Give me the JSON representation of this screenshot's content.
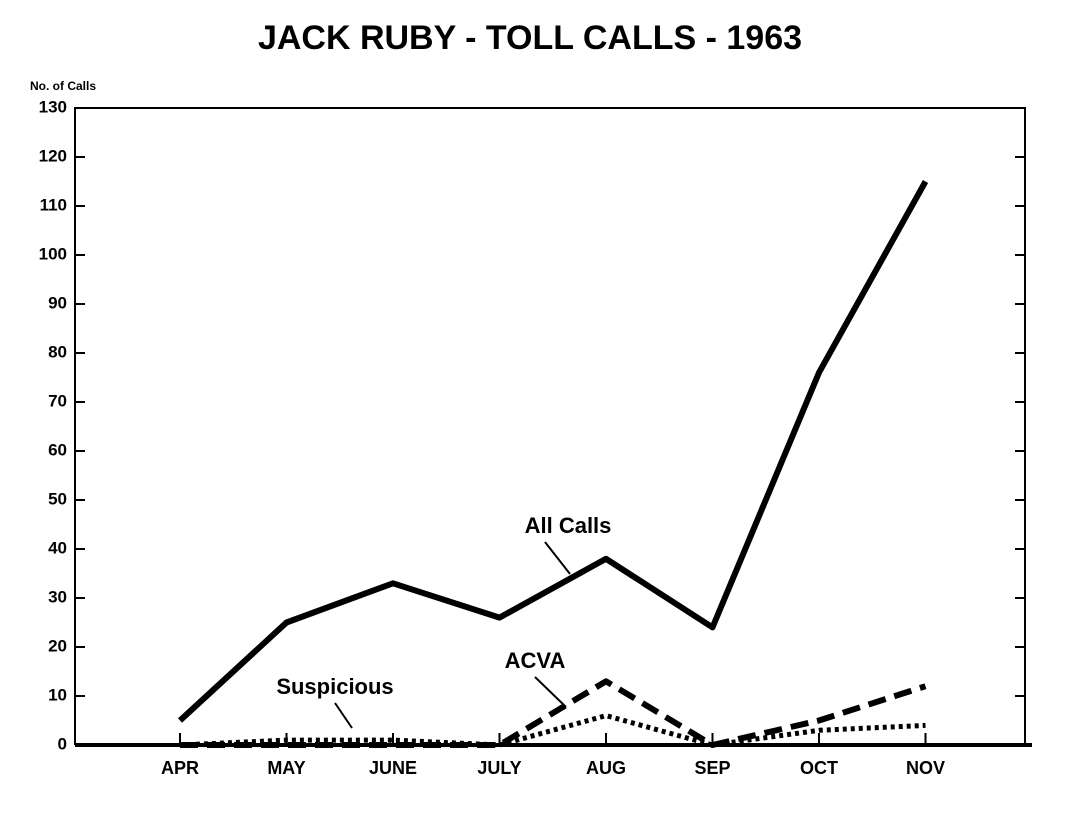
{
  "chart_data": {
    "type": "line",
    "title": "JACK RUBY - TOLL CALLS - 1963",
    "y_label": "No. of Calls",
    "categories": [
      "APR",
      "MAY",
      "JUNE",
      "JULY",
      "AUG",
      "SEP",
      "OCT",
      "NOV"
    ],
    "series": [
      {
        "name": "All Calls",
        "color": "#000000",
        "style": "solid",
        "values": [
          5,
          25,
          33,
          26,
          38,
          24,
          76,
          115
        ]
      },
      {
        "name": "ACVA",
        "color": "#000000",
        "style": "dashed",
        "values": [
          0,
          0,
          0,
          0,
          13,
          0,
          5,
          12
        ]
      },
      {
        "name": "Suspicious",
        "color": "#000000",
        "style": "dotted",
        "values": [
          0,
          1,
          1,
          0,
          6,
          0,
          3,
          4
        ]
      }
    ],
    "ylim": [
      0,
      130
    ],
    "yticks": [
      0,
      10,
      20,
      30,
      40,
      50,
      60,
      70,
      80,
      90,
      100,
      110,
      120,
      130
    ],
    "grid": false
  }
}
